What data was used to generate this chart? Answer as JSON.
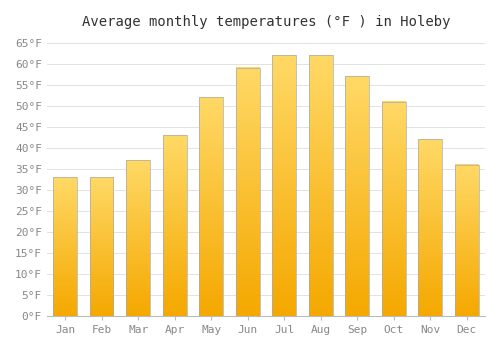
{
  "title": "Average monthly temperatures (°F ) in Holeby",
  "months": [
    "Jan",
    "Feb",
    "Mar",
    "Apr",
    "May",
    "Jun",
    "Jul",
    "Aug",
    "Sep",
    "Oct",
    "Nov",
    "Dec"
  ],
  "values": [
    33,
    33,
    37,
    43,
    52,
    59,
    62,
    62,
    57,
    51,
    42,
    36
  ],
  "bar_color_bottom": "#F5A800",
  "bar_color_top": "#FFD966",
  "bar_edge_color": "#AAAAAA",
  "background_color": "#FFFFFF",
  "grid_color": "#DDDDDD",
  "ylim": [
    0,
    67
  ],
  "yticks": [
    0,
    5,
    10,
    15,
    20,
    25,
    30,
    35,
    40,
    45,
    50,
    55,
    60,
    65
  ],
  "ytick_labels": [
    "0°F",
    "5°F",
    "10°F",
    "15°F",
    "20°F",
    "25°F",
    "30°F",
    "35°F",
    "40°F",
    "45°F",
    "50°F",
    "55°F",
    "60°F",
    "65°F"
  ],
  "title_fontsize": 10,
  "tick_fontsize": 8,
  "title_color": "#333333",
  "tick_color": "#888888",
  "font_family": "monospace",
  "bar_width": 0.65
}
